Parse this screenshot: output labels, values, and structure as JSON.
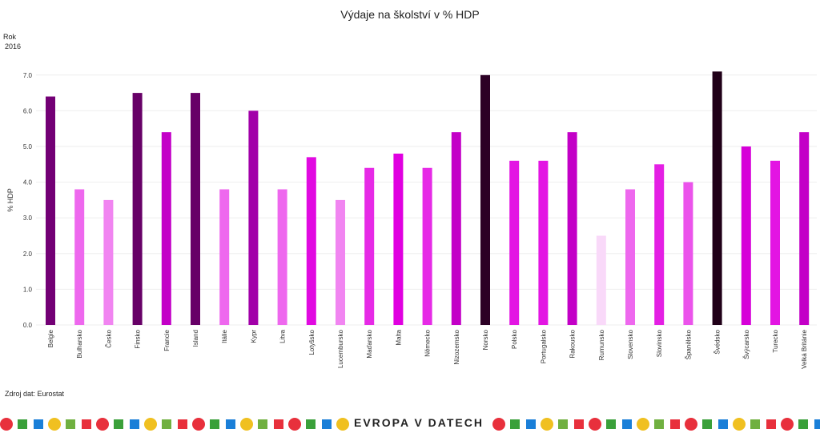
{
  "chart_data": {
    "type": "bar",
    "title": "Výdaje na školství v % HDP",
    "ylabel": "% HDP",
    "xlabel": "",
    "ylim": [
      0,
      7.2
    ],
    "yticks": [
      "0.0",
      "1.0",
      "2.0",
      "3.0",
      "4.0",
      "5.0",
      "6.0",
      "7.0"
    ],
    "grid": true,
    "categories": [
      "Belgie",
      "Bulharsko",
      "Česko",
      "Finsko",
      "Francie",
      "Island",
      "Itálie",
      "Kypr",
      "Litva",
      "Lotyšsko",
      "Lucembursko",
      "Maďarsko",
      "Malta",
      "Německo",
      "Nizozemsko",
      "Norsko",
      "Polsko",
      "Portugalsko",
      "Rakousko",
      "Rumunsko",
      "Slovensko",
      "Slovinsko",
      "Španělsko",
      "Švédsko",
      "Švýcarsko",
      "Turecko",
      "Velká Británie"
    ],
    "values": [
      6.4,
      3.8,
      3.5,
      6.5,
      5.4,
      6.5,
      3.8,
      6.0,
      3.8,
      4.7,
      3.5,
      4.4,
      4.8,
      4.4,
      5.4,
      7.0,
      4.6,
      4.6,
      5.4,
      2.5,
      3.8,
      4.5,
      4.0,
      7.1,
      5.0,
      4.6,
      5.4
    ],
    "color_scale": [
      "#f9d9f9",
      "#f078f0",
      "#e000e0",
      "#a800b0",
      "#200018"
    ]
  },
  "filter": {
    "label": "Rok",
    "value": "2016"
  },
  "source": "Zdroj dat: Eurostat",
  "logo": "EVROPA V DATECH"
}
